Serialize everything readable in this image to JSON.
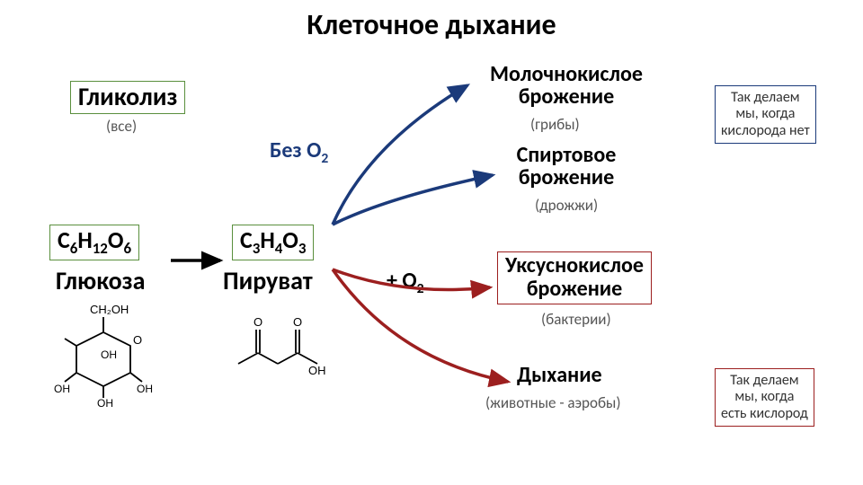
{
  "title": "Клеточное дыхание",
  "glycolysis": {
    "label": "Гликолиз",
    "sub": "(все)",
    "box_color": "#5a8f3d"
  },
  "glucose": {
    "formula_html": "C<sub>6</sub>H<sub>12</sub>O<sub>6</sub>",
    "label": "Глюкоза",
    "box_color": "#5a8f3d"
  },
  "pyruvate": {
    "formula_html": "C<sub>3</sub>H<sub>4</sub>O<sub>3</sub>",
    "label": "Пируват",
    "box_color": "#5a8f3d"
  },
  "without_o2": {
    "label_html": "Без O<sub>2</sub>",
    "color": "#1b3a7a"
  },
  "with_o2": {
    "label_html": "+ O<sub>2</sub>",
    "color": "#000"
  },
  "lactic": {
    "label": "Молочнокислое\nброжение",
    "sub": "(грибы)"
  },
  "alcohol": {
    "label": "Спиртовое\nброжение",
    "sub": "(дрожжи)"
  },
  "acetic": {
    "label": "Уксуснокислое\nброжение",
    "sub": "(бактерии)",
    "box_color": "#9c1f1f"
  },
  "respiration": {
    "label": "Дыхание",
    "sub": "(животные - аэробы)"
  },
  "note_top": {
    "text": "Так делаем\nмы, когда\nкислорода нет",
    "box_color": "#1b3a7a"
  },
  "note_bottom": {
    "text": "Так делаем\nмы, когда\nесть кислород",
    "box_color": "#9c1f1f"
  },
  "arrow_colors": {
    "main": "#000000",
    "anaerobic": "#1b3a7a",
    "aerobic": "#9c1f1f"
  },
  "arrow_width": 3.5,
  "fontsize": {
    "title": 32,
    "main": 28,
    "sub": 17,
    "formula": 26,
    "note": 16
  }
}
